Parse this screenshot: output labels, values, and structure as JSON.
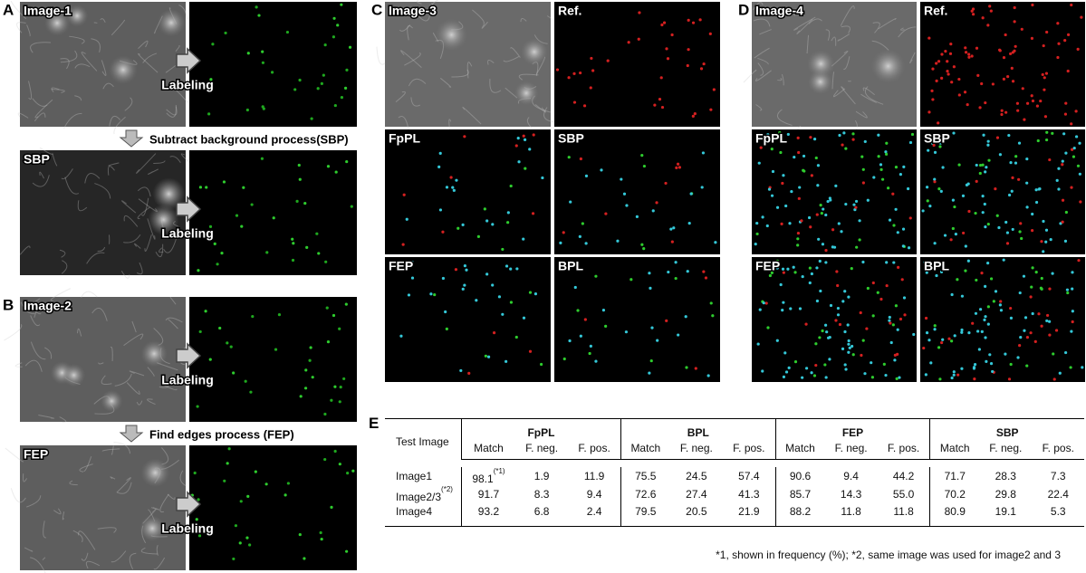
{
  "panels": [
    {
      "letter": "A",
      "process": "Subtract background process(SBP)",
      "rows": [
        {
          "label": "Image-1",
          "arrow": "Labeling"
        },
        {
          "label": "SBP",
          "arrow": "Labeling"
        }
      ]
    },
    {
      "letter": "B",
      "process": "Find edges process (FEP)",
      "rows": [
        {
          "label": "Image-2",
          "arrow": "Labeling"
        },
        {
          "label": "FEP",
          "arrow": "Labeling"
        }
      ]
    },
    {
      "letter": "C",
      "tiles": [
        "Image-3",
        "Ref.",
        "FpPL",
        "SBP",
        "FEP",
        "BPL"
      ]
    },
    {
      "letter": "D",
      "tiles": [
        "Image-4",
        "Ref.",
        "FpPL",
        "SBP",
        "FEP",
        "BPL"
      ]
    }
  ],
  "table": {
    "letter": "E",
    "corner": "Test Image",
    "groups": [
      "FpPL",
      "BPL",
      "FEP",
      "SBP"
    ],
    "columns": [
      "Match",
      "F. neg.",
      "F. pos."
    ],
    "rows": [
      {
        "name": "Image1",
        "value_note": "(*1)",
        "cells": [
          "98.1",
          "1.9",
          "11.9",
          "75.5",
          "24.5",
          "57.4",
          "90.6",
          "9.4",
          "44.2",
          "71.7",
          "28.3",
          "7.3"
        ]
      },
      {
        "name": "Image2/3",
        "name_note": "(*2)",
        "cells": [
          "91.7",
          "8.3",
          "9.4",
          "72.6",
          "27.4",
          "41.3",
          "85.7",
          "14.3",
          "55.0",
          "70.2",
          "29.8",
          "22.4"
        ]
      },
      {
        "name": "Image4",
        "cells": [
          "93.2",
          "6.8",
          "2.4",
          "79.5",
          "20.5",
          "21.9",
          "88.2",
          "11.8",
          "11.8",
          "80.9",
          "19.1",
          "5.3"
        ]
      }
    ],
    "footnote": "*1, shown in frequency (%);  *2, same image was used for image2 and 3"
  }
}
